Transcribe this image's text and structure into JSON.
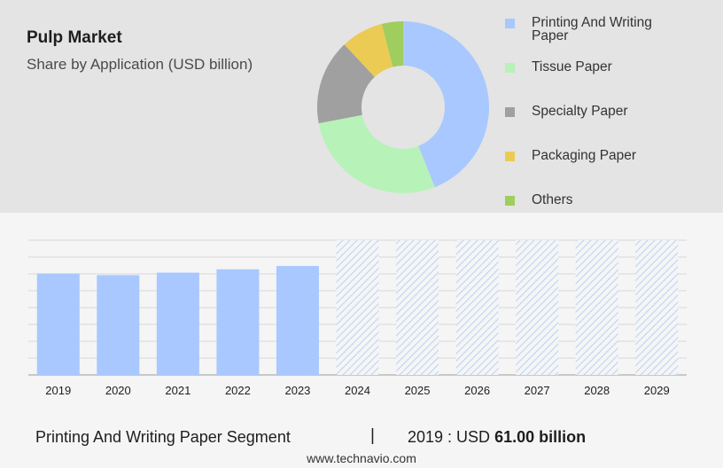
{
  "header": {
    "title": "Pulp Market",
    "subtitle": "Share by Application (USD billion)"
  },
  "chart_data": [
    {
      "type": "pie",
      "style": "donut",
      "categories": [
        "Printing And Writing Paper",
        "Tissue Paper",
        "Specialty Paper",
        "Packaging Paper",
        "Others"
      ],
      "values": [
        44,
        28,
        16,
        8,
        4
      ],
      "colors": [
        "#a8c8ff",
        "#b7f2b9",
        "#a0a0a0",
        "#eccb55",
        "#9fcd5e"
      ],
      "legend_position": "right"
    },
    {
      "type": "bar",
      "categories": [
        "2019",
        "2020",
        "2021",
        "2022",
        "2023",
        "2024",
        "2025",
        "2026",
        "2027",
        "2028",
        "2029"
      ],
      "values": [
        61.0,
        60.0,
        61.5,
        63.5,
        65.5,
        null,
        null,
        null,
        null,
        null,
        null
      ],
      "forecast_categories": [
        "2024",
        "2025",
        "2026",
        "2027",
        "2028",
        "2029"
      ],
      "bar_color": "#a8c8ff",
      "forecast_pattern": "diagonal-hatch",
      "ylim": [
        0,
        81
      ],
      "grid": true
    }
  ],
  "footer": {
    "segment_label": "Printing And Writing Paper Segment",
    "separator": "|",
    "year_label": "2019 : USD",
    "value": "61.00 billion",
    "website": "www.technavio.com"
  }
}
